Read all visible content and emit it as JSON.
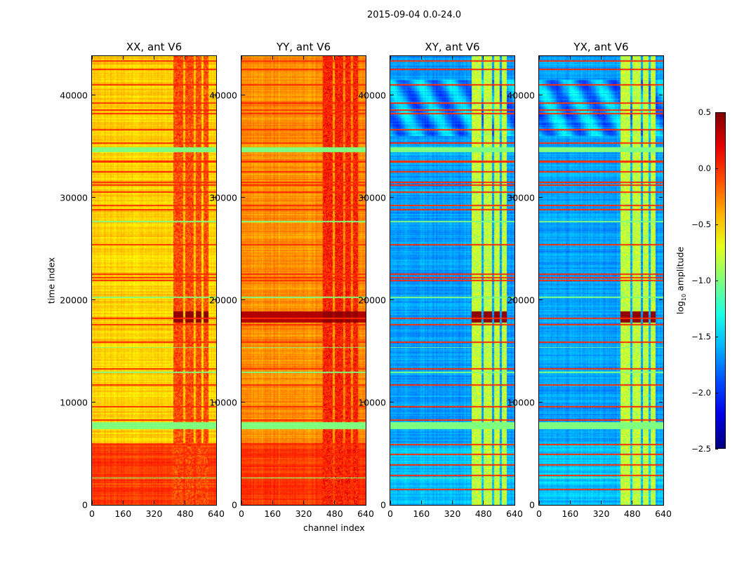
{
  "chart_data": {
    "type": "heatmap",
    "title": "2015-09-04 0.0-24.0",
    "xlabel": "channel index",
    "ylabel": "time index",
    "xlim": [
      0,
      640
    ],
    "ylim": [
      0,
      43800
    ],
    "xticks": [
      "0",
      "160",
      "320",
      "480",
      "640"
    ],
    "xtick_values": [
      0,
      160,
      320,
      480,
      640
    ],
    "yticks": [
      "0",
      "10000",
      "20000",
      "30000",
      "40000"
    ],
    "ytick_values": [
      0,
      10000,
      20000,
      30000,
      40000
    ],
    "colorbar": {
      "label_base": "log",
      "label_sub": "10",
      "label_rest": " amplitude",
      "range": [
        -2.5,
        0.5
      ],
      "ticks": [
        "0.5",
        "0.0",
        "−0.5",
        "−1.0",
        "−1.5",
        "−2.0",
        "−2.5"
      ],
      "tick_values": [
        0.5,
        0.0,
        -0.5,
        -1.0,
        -1.5,
        -2.0,
        -2.5
      ],
      "colormap": "jet"
    },
    "panels": [
      {
        "title": "XX, ant V6",
        "base_level": -0.5,
        "low_time_level": -0.05,
        "rfi_level": -0.1
      },
      {
        "title": "YY, ant V6",
        "base_level": -0.3,
        "low_time_level": -0.05,
        "rfi_level": 0.05
      },
      {
        "title": "XY, ant V6",
        "base_level": -1.65,
        "low_time_level": -1.55,
        "rfi_level": -0.8
      },
      {
        "title": "YX, ant V6",
        "base_level": -1.65,
        "low_time_level": -1.55,
        "rfi_level": -0.8
      }
    ],
    "rfi_channels": [
      [
        420,
        470
      ],
      [
        480,
        525
      ],
      [
        535,
        565
      ],
      [
        575,
        600
      ]
    ],
    "burst_time": [
      17800,
      18900
    ],
    "burst_level": 0.45,
    "flag_bands": [
      [
        7400,
        8100
      ],
      [
        34400,
        34900
      ],
      [
        27600,
        27700
      ],
      [
        20200,
        20300
      ],
      [
        12900,
        13000
      ],
      [
        15300,
        15400
      ],
      [
        2600,
        2700
      ]
    ],
    "flag_level": -1.0,
    "red_lines": [
      1500,
      2900,
      3900,
      4900,
      5900,
      8300,
      9600,
      11700,
      13300,
      15900,
      17600,
      18200,
      21900,
      22200,
      22500,
      25400,
      28800,
      29200,
      30500,
      31200,
      31500,
      32500,
      33500,
      35300,
      36600,
      38200,
      38500,
      39200,
      41000,
      42500,
      43300
    ],
    "red_level": 0.0
  }
}
